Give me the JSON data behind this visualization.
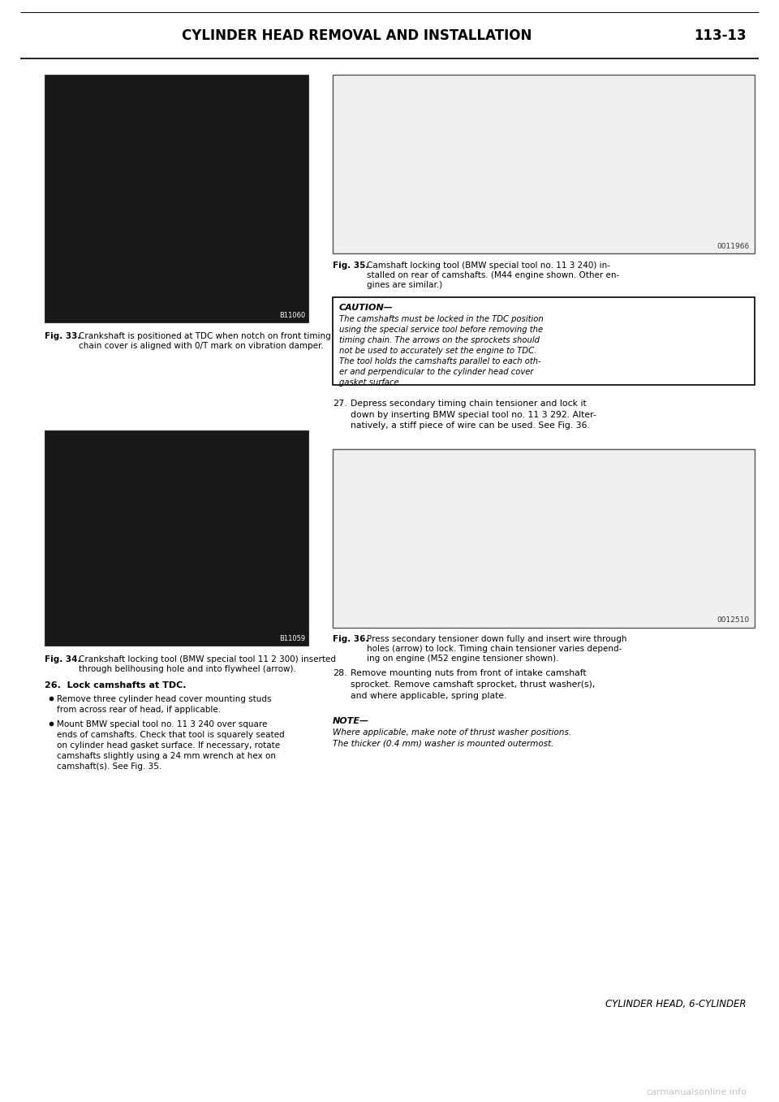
{
  "page_number": "113-13",
  "background_color": "#ffffff",
  "fig33_caption_bold": "Fig. 33.",
  "fig33_caption_text": "Crankshaft is positioned at TDC when notch on front timing\nchain cover is aligned with 0/T mark on vibration damper.",
  "fig34_caption_bold": "Fig. 34.",
  "fig34_caption_text": "Crankshaft locking tool (BMW special tool 11 2 300) inserted\nthrough bellhousing hole and into flywheel (arrow).",
  "fig35_caption_bold": "Fig. 35.",
  "fig35_caption_text": "Camshaft locking tool (BMW special tool no. 11 3 240) in-\nstalled on rear of camshafts. (M44 engine shown. Other en-\ngines are similar.)",
  "fig36_caption_bold": "Fig. 36.",
  "fig36_caption_text": "Press secondary tensioner down fully and insert wire through\nholes (arrow) to lock. Timing chain tensioner varies depend-\ning on engine (M52 engine tensioner shown).",
  "caution_title": "CAUTION—",
  "caution_lines": [
    "The camshafts must be locked in the TDC position",
    "using the special service tool before removing the",
    "timing chain. The arrows on the sprockets should",
    "not be used to accurately set the engine to TDC.",
    "The tool holds the camshafts parallel to each oth-",
    "er and perpendicular to the cylinder head cover",
    "gasket surface."
  ],
  "step26_title": "26.  Lock camshafts at TDC.",
  "step26_b1_lines": [
    "Remove three cylinder head cover mounting studs",
    "from across rear of head, if applicable."
  ],
  "step26_b2_lines": [
    "Mount BMW special tool no. 11 3 240 over square",
    "ends of camshafts. Check that tool is squarely seated",
    "on cylinder head gasket surface. If necessary, rotate",
    "camshafts slightly using a 24 mm wrench at hex on",
    "camshaft(s). See Fig. 35."
  ],
  "step27_lines": [
    "Depress secondary timing chain tensioner and lock it",
    "down by inserting BMW special tool no. 11 3 292. Alter-",
    "natively, a stiff piece of wire can be used. See Fig. 36."
  ],
  "step28_lines": [
    "Remove mounting nuts from front of intake camshaft",
    "sprocket. Remove camshaft sprocket, thrust washer(s),",
    "and where applicable, spring plate."
  ],
  "note_title": "NOTE—",
  "note_lines": [
    "Where applicable, make note of thrust washer positions.",
    "The thicker (0.4 mm) washer is mounted outermost."
  ],
  "footer_text": "CYLINDER HEAD, 6-CYLINDER",
  "watermark": "carmanualsonline.info",
  "header_title_left": "CYLINDER HEAD REMOVAL AND INSTALLATION",
  "img33_color": "#181818",
  "img34_color": "#181818",
  "img35_color": "#f0f0f0",
  "img36_color": "#f0f0f0",
  "img33_label": "B11060",
  "img34_label": "B11059",
  "img35_label": "0011966",
  "img36_label": "0012510"
}
